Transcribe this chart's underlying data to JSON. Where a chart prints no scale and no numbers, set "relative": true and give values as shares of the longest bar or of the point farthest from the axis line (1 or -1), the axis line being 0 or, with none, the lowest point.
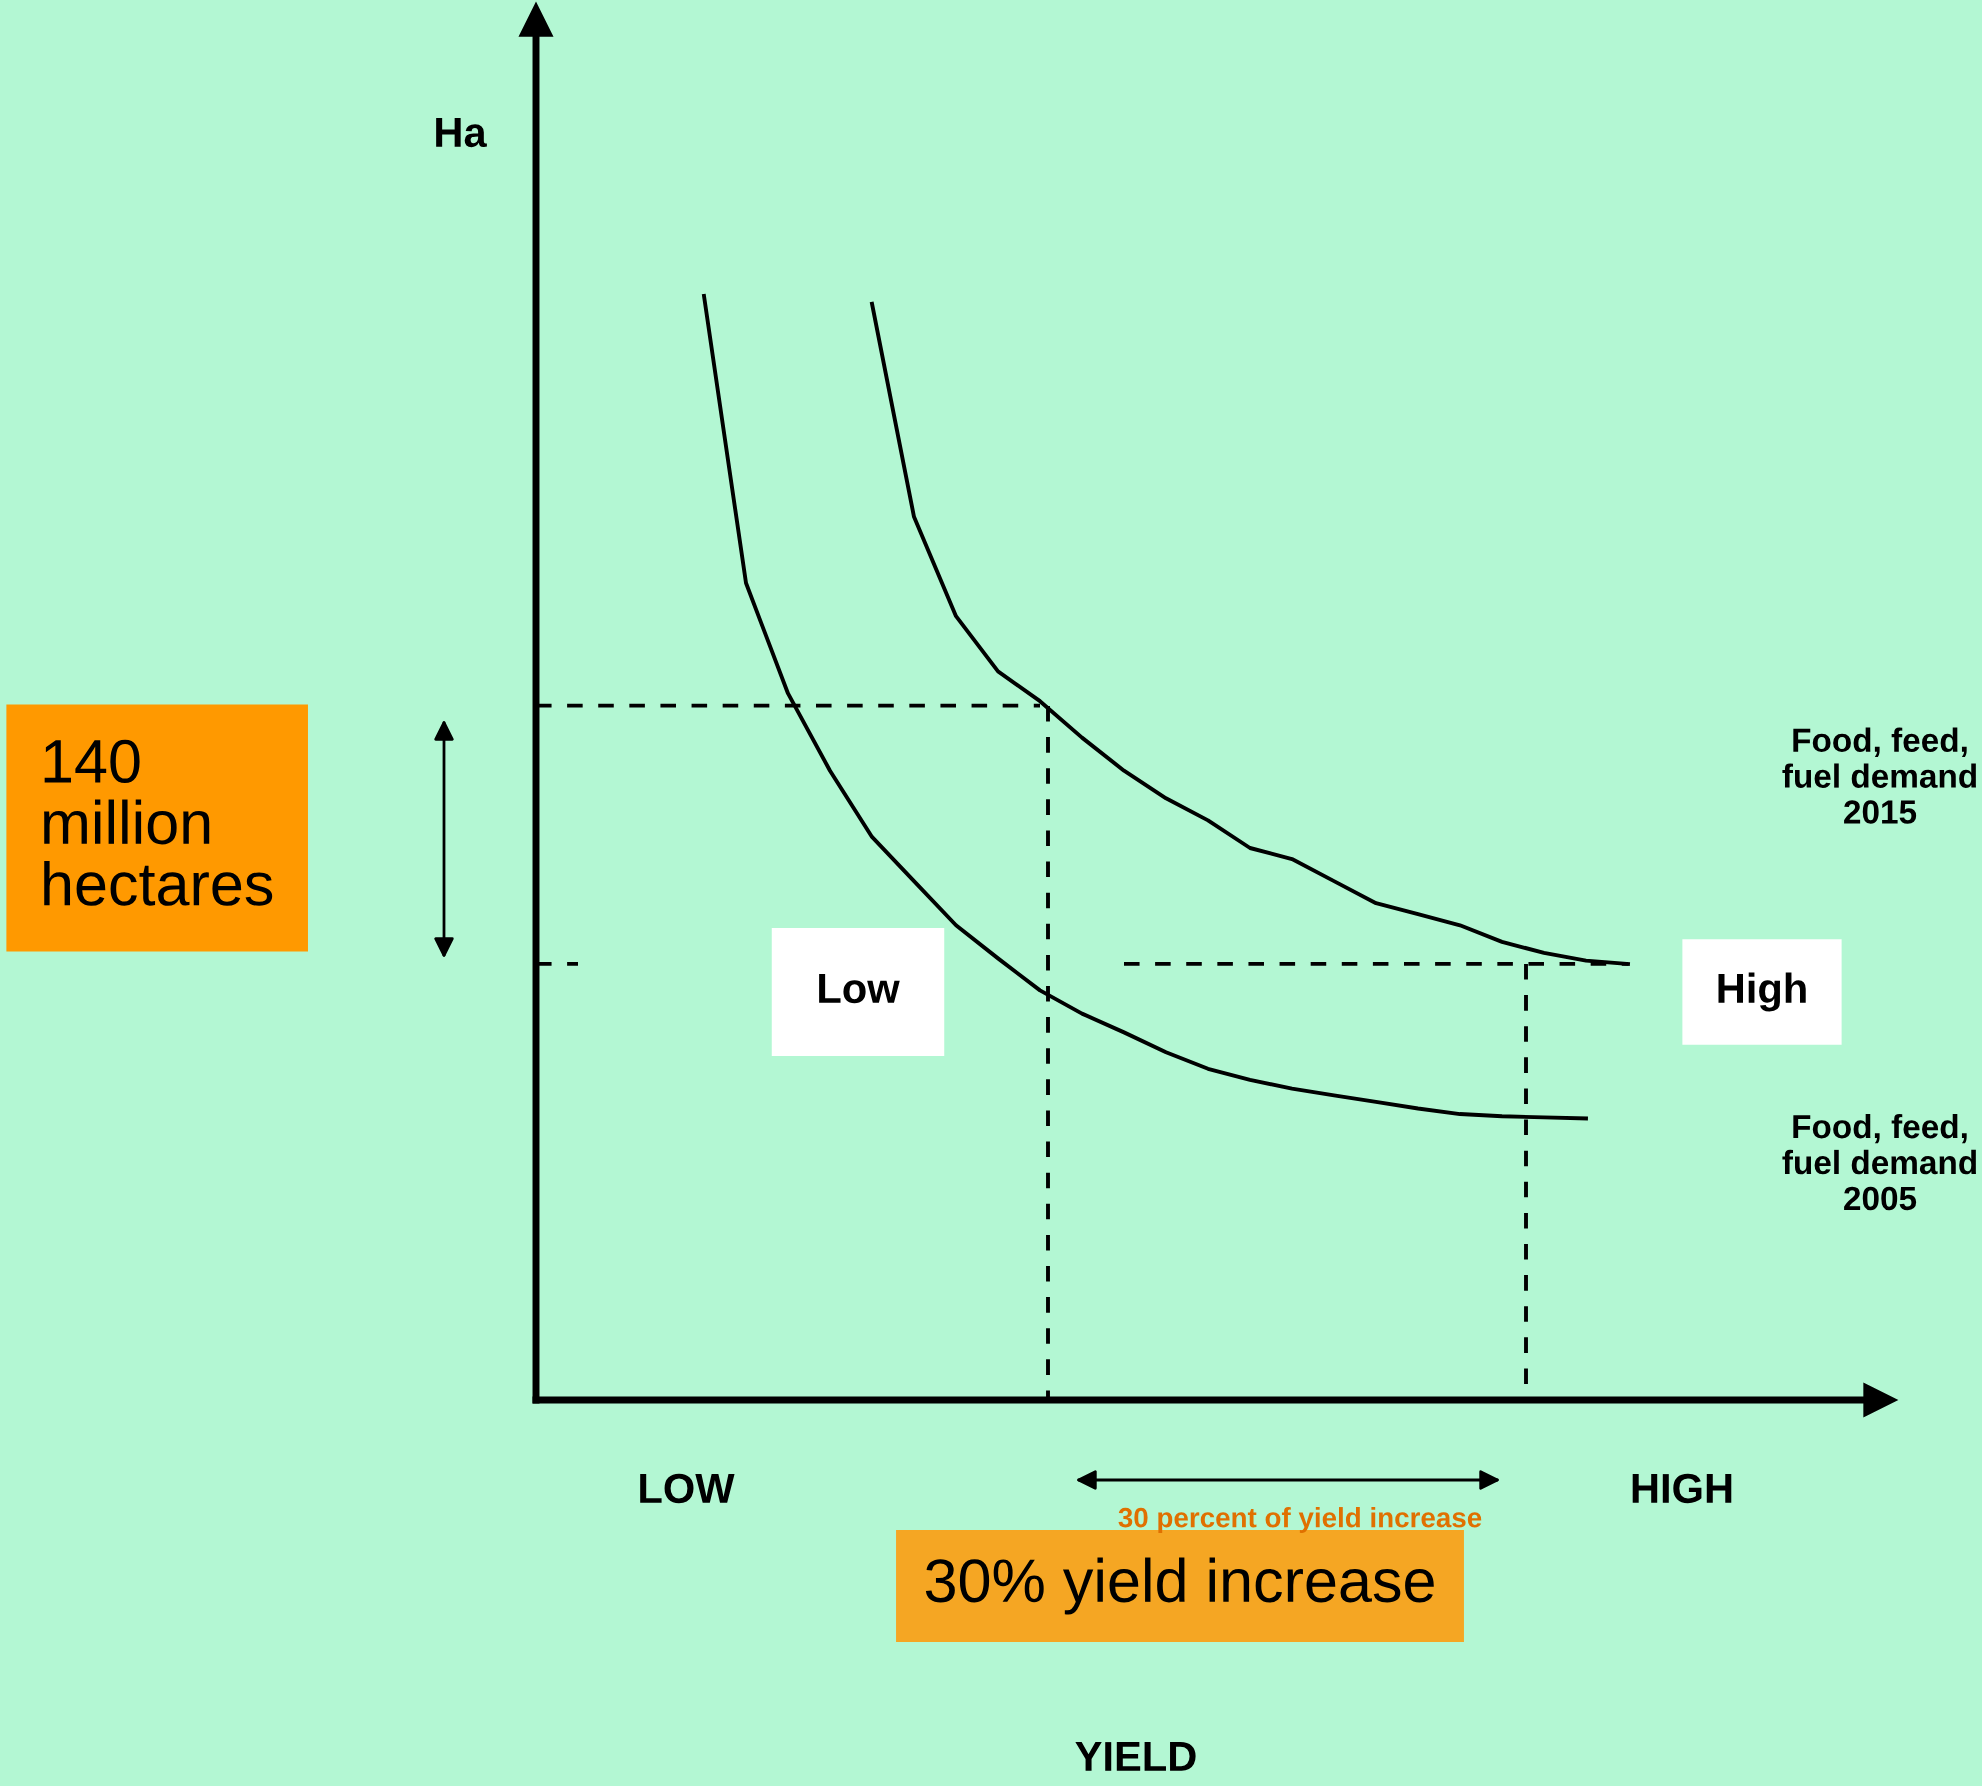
{
  "chart_data": {
    "type": "line",
    "relative": true,
    "ylabel": "Ha",
    "categories": [
      null,
      null,
      null,
      null,
      null,
      null,
      null,
      null,
      null,
      null,
      null,
      null,
      null,
      null,
      null,
      null,
      null,
      null,
      null,
      null,
      null,
      null,
      null,
      null,
      null,
      null,
      null,
      null,
      null,
      null,
      null,
      null
    ],
    "grid": false,
    "legend": false,
    "marker": "none",
    "line_style": "solid",
    "series": [
      {
        "name": "Food, feed, fuel demand 2015",
        "color": "#000000",
        "values": [
          null,
          null,
          null,
          null,
          null,
          null,
          null,
          null,
          0.993,
          0.8,
          0.71,
          0.66,
          0.633,
          0.6,
          0.57,
          0.545,
          0.525,
          0.5,
          0.49,
          0.47,
          0.45,
          0.44,
          0.43,
          0.415,
          0.405,
          0.398,
          0.395,
          null,
          null,
          null,
          null,
          null
        ]
      },
      {
        "name": "Food, feed, fuel demand 2005",
        "color": "#000000",
        "values": [
          null,
          null,
          null,
          null,
          1.0,
          0.74,
          0.64,
          0.57,
          0.51,
          0.47,
          0.43,
          0.4,
          0.371,
          0.35,
          0.333,
          0.315,
          0.3,
          0.29,
          0.282,
          0.276,
          0.27,
          0.264,
          0.259,
          0.257,
          0.256,
          0.255,
          null,
          null,
          null,
          null,
          null,
          null
        ]
      },
      {
        "color": "#000000",
        "line_style": "dashed",
        "values": [
          0.629,
          0.629,
          0.629,
          0.629,
          0.629,
          0.629,
          0.629,
          0.629,
          0.629,
          0.629,
          0.629,
          0.629,
          0.629,
          null,
          null,
          null,
          null,
          null,
          null,
          null,
          null,
          null,
          null,
          null,
          null,
          null,
          null,
          null,
          null,
          null,
          null,
          null
        ]
      },
      {
        "color": "#000000",
        "line_style": "dashed",
        "values": [
          0.395,
          0.395,
          null,
          null,
          null,
          null,
          null,
          null,
          null,
          null,
          null,
          null,
          null,
          null,
          0.395,
          0.395,
          0.395,
          0.395,
          0.395,
          0.395,
          0.395,
          0.395,
          0.395,
          0.395,
          0.395,
          0.395,
          0.395,
          null,
          null,
          null,
          null,
          null
        ]
      }
    ],
    "annotations": [
      "140 million hectares",
      "Low",
      "High",
      "30% yield increase",
      "30 percent of yield increase",
      "LOW",
      "HIGH",
      "YIELD"
    ]
  }
}
